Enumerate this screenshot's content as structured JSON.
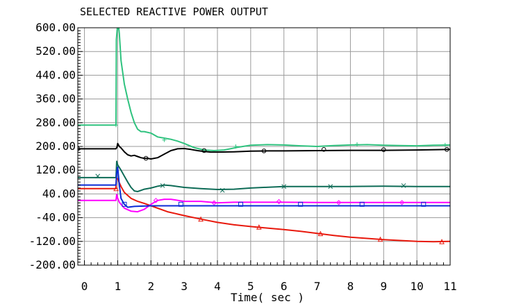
{
  "chart_data": {
    "type": "line",
    "title": "SELECTED REACTIVE POWER OUTPUT",
    "xlabel": "Time( sec )",
    "ylabel": "",
    "xlim": [
      -0.2,
      11
    ],
    "ylim": [
      -200,
      600
    ],
    "x_ticks": [
      0,
      1,
      2,
      3,
      4,
      5,
      6,
      7,
      8,
      9,
      10,
      11
    ],
    "x_tick_labels": [
      "0",
      "1",
      "2",
      "3",
      "4",
      "5",
      "6",
      "7",
      "8",
      "9",
      "10",
      "11"
    ],
    "y_ticks": [
      600,
      520,
      440,
      360,
      280,
      200,
      120,
      40,
      -40,
      -120,
      -200
    ],
    "y_tick_labels": [
      "600.00",
      "520.00",
      "440.00",
      "360.00",
      "280.00",
      "200.00",
      "120.00",
      "40.00",
      "-40.00",
      "-120.00",
      "-200.00"
    ],
    "grid": true,
    "series": [
      {
        "color": "#2ec27e",
        "marker": "plus",
        "x": [
          -0.2,
          0.95,
          0.96,
          0.99,
          1.01,
          1.03,
          1.05,
          1.1,
          1.2,
          1.3,
          1.4,
          1.5,
          1.6,
          1.7,
          1.8,
          2.0,
          2.2,
          2.4,
          2.6,
          2.8,
          3.0,
          3.3,
          3.6,
          3.9,
          4.2,
          4.6,
          5.0,
          5.5,
          6.0,
          6.5,
          7.0,
          7.5,
          8.0,
          8.5,
          9.0,
          9.5,
          10.0,
          10.5,
          11.0
        ],
        "y": [
          272,
          272,
          560,
          600,
          595,
          600,
          580,
          490,
          410,
          360,
          315,
          280,
          258,
          250,
          250,
          245,
          232,
          228,
          224,
          218,
          210,
          196,
          188,
          186,
          188,
          197,
          204,
          206,
          205,
          202,
          200,
          203,
          205,
          206,
          204,
          203,
          202,
          204,
          205
        ],
        "marker_x": [
          0.95,
          2.4,
          4.55,
          8.2,
          10.85
        ],
        "marker_y": [
          272,
          222,
          200,
          207,
          205
        ]
      },
      {
        "color": "#000000",
        "marker": "circle",
        "x": [
          -0.2,
          0.95,
          0.98,
          1.0,
          1.05,
          1.1,
          1.2,
          1.3,
          1.4,
          1.5,
          1.6,
          1.7,
          1.8,
          1.9,
          2.0,
          2.2,
          2.4,
          2.6,
          2.8,
          3.0,
          3.2,
          3.4,
          3.6,
          3.8,
          4.0,
          4.5,
          5.0,
          5.5,
          6.0,
          7.0,
          8.0,
          9.0,
          10.0,
          11.0
        ],
        "y": [
          192,
          192,
          198,
          210,
          200,
          195,
          182,
          172,
          168,
          170,
          166,
          162,
          160,
          160,
          158,
          162,
          174,
          186,
          192,
          193,
          190,
          186,
          183,
          181,
          181,
          182,
          184,
          185,
          185,
          186,
          187,
          187,
          188,
          190
        ],
        "marker_x": [
          -0.2,
          1.85,
          3.6,
          5.4,
          7.2,
          9.0,
          10.9
        ],
        "marker_y": [
          192,
          160,
          186,
          185,
          190,
          189,
          190
        ]
      },
      {
        "color": "#0d6b56",
        "marker": "x",
        "x": [
          -0.2,
          0.95,
          0.97,
          1.0,
          1.1,
          1.2,
          1.3,
          1.4,
          1.5,
          1.6,
          1.7,
          1.8,
          2.0,
          2.2,
          2.4,
          2.6,
          3.0,
          3.5,
          4.0,
          4.5,
          5.0,
          6.0,
          7.0,
          8.0,
          9.0,
          10.0,
          11.0
        ],
        "y": [
          95,
          95,
          150,
          138,
          120,
          100,
          80,
          62,
          50,
          48,
          52,
          56,
          60,
          66,
          70,
          68,
          62,
          58,
          55,
          56,
          60,
          65,
          65,
          65,
          66,
          65,
          65
        ],
        "marker_x": [
          0.4,
          2.35,
          4.15,
          6.0,
          7.4,
          9.6
        ],
        "marker_y": [
          100,
          68,
          52,
          65,
          65,
          68
        ]
      },
      {
        "color": "#e8180c",
        "marker": "triangle",
        "x": [
          -0.2,
          0.95,
          0.96,
          1.0,
          1.1,
          1.2,
          1.4,
          1.6,
          1.8,
          2.0,
          2.5,
          3.0,
          3.5,
          4.0,
          4.5,
          5.0,
          5.5,
          6.0,
          6.5,
          7.0,
          7.5,
          8.0,
          8.5,
          9.0,
          9.5,
          10.0,
          10.5,
          11.0
        ],
        "y": [
          58,
          58,
          95,
          90,
          65,
          45,
          25,
          15,
          8,
          0,
          -20,
          -33,
          -45,
          -56,
          -64,
          -70,
          -75,
          -80,
          -86,
          -93,
          -100,
          -106,
          -110,
          -114,
          -117,
          -120,
          -121,
          -120
        ],
        "marker_x": [
          0.95,
          3.5,
          5.25,
          7.1,
          8.9,
          10.75
        ],
        "marker_y": [
          58,
          -45,
          -72,
          -94,
          -113,
          -121
        ]
      },
      {
        "color": "#ff00ff",
        "marker": "diamond",
        "x": [
          -0.2,
          0.95,
          0.97,
          1.0,
          1.05,
          1.1,
          1.2,
          1.4,
          1.6,
          1.8,
          2.0,
          2.2,
          2.4,
          2.6,
          3.0,
          3.5,
          4.0,
          4.5,
          5.0,
          6.0,
          7.0,
          8.0,
          9.0,
          10.0,
          11.0
        ],
        "y": [
          18,
          18,
          38,
          25,
          12,
          5,
          -8,
          -18,
          -20,
          -12,
          5,
          18,
          22,
          22,
          15,
          15,
          10,
          12,
          12,
          12,
          11,
          11,
          11,
          11,
          11
        ],
        "marker_x": [
          2.15,
          3.9,
          5.85,
          7.65,
          9.55
        ],
        "marker_y": [
          18,
          10,
          14,
          11,
          11
        ]
      },
      {
        "color": "#0a2bd6",
        "marker": "square",
        "x": [
          -0.2,
          0.95,
          0.97,
          1.0,
          1.05,
          1.1,
          1.2,
          1.3,
          1.5,
          2.0,
          3.0,
          4.0,
          5.0,
          6.0,
          7.0,
          8.0,
          9.0,
          10.0,
          11.0
        ],
        "y": [
          70,
          70,
          110,
          130,
          70,
          25,
          5,
          -5,
          -2,
          0,
          0,
          0,
          0,
          0,
          0,
          0,
          0,
          0,
          0
        ],
        "marker_x": [
          1.2,
          2.9,
          4.7,
          6.5,
          8.35,
          10.2
        ],
        "marker_y": [
          5,
          5,
          5,
          5,
          5,
          5
        ]
      }
    ]
  }
}
